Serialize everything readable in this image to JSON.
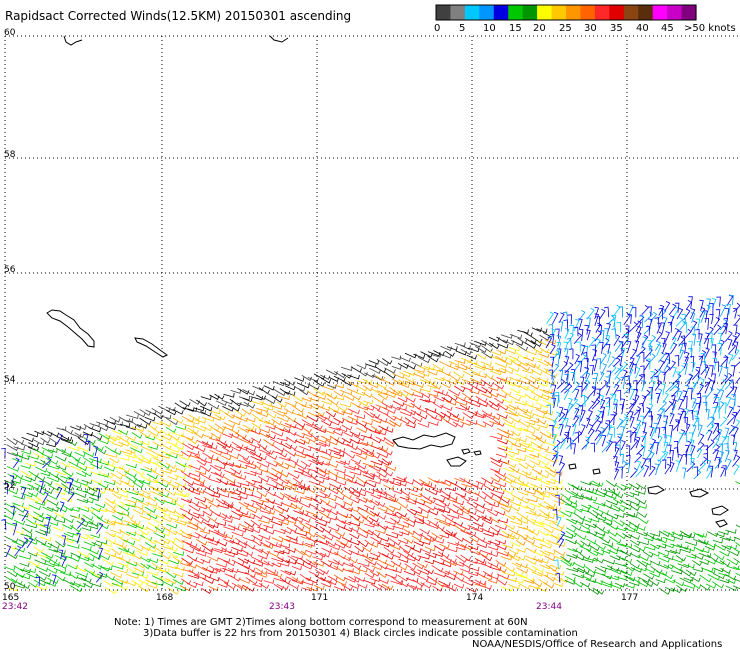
{
  "header": {
    "title": "Rapidsact Corrected Winds(12.5KM) 20150301 ascending"
  },
  "legend": {
    "swatch_colors": [
      "#404040",
      "#808080",
      "#00c8ff",
      "#0096ff",
      "#0000e0",
      "#00c800",
      "#009600",
      "#ffff00",
      "#ffc800",
      "#ff9600",
      "#ff6400",
      "#ff2828",
      "#e00000",
      "#8b4513",
      "#5a2d0c",
      "#ff00ff",
      "#c800c8",
      "#800080"
    ],
    "ticks": [
      "0",
      "5",
      "10",
      "15",
      "20",
      "25",
      "30",
      "35",
      "40",
      "45",
      ">50 knots"
    ]
  },
  "axes": {
    "lat_labels": [
      "60",
      "58",
      "56",
      "54",
      "52",
      "50"
    ],
    "lon_labels": [
      "165",
      "168",
      "171",
      "174",
      "177"
    ]
  },
  "times": [
    "23:42",
    "23:43",
    "23:44"
  ],
  "notes": {
    "line1": "Note: 1) Times are GMT 2)Times along bottom correspond to measurement at 60N",
    "line2": "3)Data buffer is 22 hrs from 20150301 4) Black circles indicate possible contamination",
    "credit": "NOAA/NESDIS/Office of Research and Applications"
  },
  "colors": {
    "time_label": "#800080",
    "grid": "#000000"
  }
}
